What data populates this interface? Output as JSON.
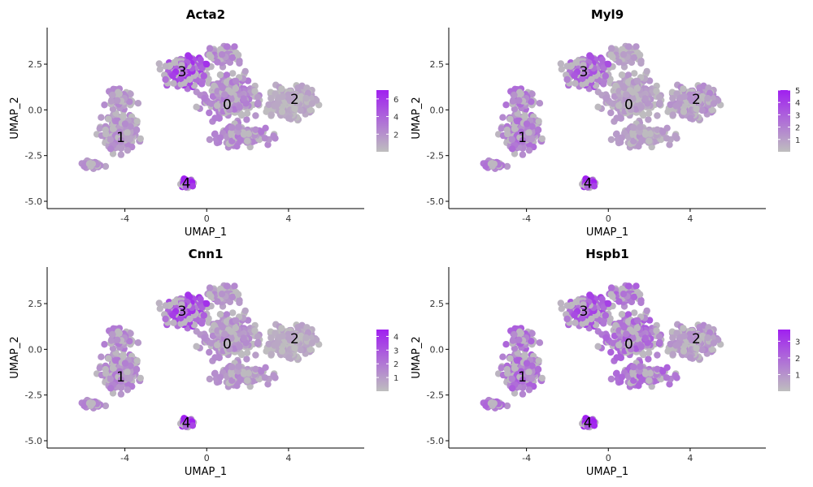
{
  "chart_data": [
    {
      "type": "scatter",
      "title": "Acta2",
      "xlabel": "UMAP_1",
      "ylabel": "UMAP_2",
      "xlim": [
        -7.8,
        7.7
      ],
      "ylim": [
        -5.4,
        4.5
      ],
      "x_ticks": [
        -4,
        0,
        4
      ],
      "x_tick_labels": [
        "-4",
        "0",
        "4"
      ],
      "y_ticks": [
        2.5,
        0.0,
        -2.5,
        -5.0
      ],
      "y_tick_labels": [
        "2.5",
        "0.0",
        "-2.5",
        "-5.0"
      ],
      "legend": {
        "position": "right",
        "min": 0,
        "max": 7,
        "ticks": [
          2,
          4,
          6
        ],
        "tick_labels": [
          "2",
          "4",
          "6"
        ]
      },
      "colors": {
        "low": "#bebebe",
        "high": "#a020f0"
      },
      "clusters": [
        {
          "label": "0",
          "x": 1.0,
          "y": 0.3
        },
        {
          "label": "1",
          "x": -4.2,
          "y": -1.5
        },
        {
          "label": "2",
          "x": 4.3,
          "y": 0.6
        },
        {
          "label": "3",
          "x": -1.2,
          "y": 2.1
        },
        {
          "label": "4",
          "x": -1.0,
          "y": -4.0
        }
      ],
      "expression_levels": {
        "0": 0.25,
        "1": 0.2,
        "2": 0.12,
        "3": 0.5,
        "4": 0.75
      }
    },
    {
      "type": "scatter",
      "title": "Myl9",
      "xlabel": "UMAP_1",
      "ylabel": "UMAP_2",
      "xlim": [
        -7.8,
        7.7
      ],
      "ylim": [
        -5.4,
        4.5
      ],
      "x_ticks": [
        -4,
        0,
        4
      ],
      "x_tick_labels": [
        "-4",
        "0",
        "4"
      ],
      "y_ticks": [
        2.5,
        0.0,
        -2.5,
        -5.0
      ],
      "y_tick_labels": [
        "2.5",
        "0.0",
        "-2.5",
        "-5.0"
      ],
      "legend": {
        "position": "right",
        "min": 0,
        "max": 5,
        "ticks": [
          1,
          2,
          3,
          4,
          5
        ],
        "tick_labels": [
          "1",
          "2",
          "3",
          "4",
          "5"
        ]
      },
      "colors": {
        "low": "#bebebe",
        "high": "#a020f0"
      },
      "clusters": [
        {
          "label": "0",
          "x": 1.0,
          "y": 0.3
        },
        {
          "label": "1",
          "x": -4.2,
          "y": -1.5
        },
        {
          "label": "2",
          "x": 4.3,
          "y": 0.6
        },
        {
          "label": "3",
          "x": -1.2,
          "y": 2.1
        },
        {
          "label": "4",
          "x": -1.0,
          "y": -4.0
        }
      ],
      "expression_levels": {
        "0": 0.15,
        "1": 0.3,
        "2": 0.2,
        "3": 0.4,
        "4": 0.7
      }
    },
    {
      "type": "scatter",
      "title": "Cnn1",
      "xlabel": "UMAP_1",
      "ylabel": "UMAP_2",
      "xlim": [
        -7.8,
        7.7
      ],
      "ylim": [
        -5.4,
        4.5
      ],
      "x_ticks": [
        -4,
        0,
        4
      ],
      "x_tick_labels": [
        "-4",
        "0",
        "4"
      ],
      "y_ticks": [
        2.5,
        0.0,
        -2.5,
        -5.0
      ],
      "y_tick_labels": [
        "2.5",
        "0.0",
        "-2.5",
        "-5.0"
      ],
      "legend": {
        "position": "right",
        "min": 0,
        "max": 4.5,
        "ticks": [
          1,
          2,
          3,
          4
        ],
        "tick_labels": [
          "1",
          "2",
          "3",
          "4"
        ]
      },
      "colors": {
        "low": "#bebebe",
        "high": "#a020f0"
      },
      "clusters": [
        {
          "label": "0",
          "x": 1.0,
          "y": 0.3
        },
        {
          "label": "1",
          "x": -4.2,
          "y": -1.5
        },
        {
          "label": "2",
          "x": 4.3,
          "y": 0.6
        },
        {
          "label": "3",
          "x": -1.2,
          "y": 2.1
        },
        {
          "label": "4",
          "x": -1.0,
          "y": -4.0
        }
      ],
      "expression_levels": {
        "0": 0.2,
        "1": 0.25,
        "2": 0.12,
        "3": 0.5,
        "4": 0.7
      }
    },
    {
      "type": "scatter",
      "title": "Hspb1",
      "xlabel": "UMAP_1",
      "ylabel": "UMAP_2",
      "xlim": [
        -7.8,
        7.7
      ],
      "ylim": [
        -5.4,
        4.5
      ],
      "x_ticks": [
        -4,
        0,
        4
      ],
      "x_tick_labels": [
        "-4",
        "0",
        "4"
      ],
      "y_ticks": [
        2.5,
        0.0,
        -2.5,
        -5.0
      ],
      "y_tick_labels": [
        "2.5",
        "0.0",
        "-2.5",
        "-5.0"
      ],
      "legend": {
        "position": "right",
        "min": 0,
        "max": 3.7,
        "ticks": [
          1,
          2,
          3
        ],
        "tick_labels": [
          "1",
          "2",
          "3"
        ]
      },
      "colors": {
        "low": "#bebebe",
        "high": "#a020f0"
      },
      "clusters": [
        {
          "label": "0",
          "x": 1.0,
          "y": 0.3
        },
        {
          "label": "1",
          "x": -4.2,
          "y": -1.5
        },
        {
          "label": "2",
          "x": 4.3,
          "y": 0.6
        },
        {
          "label": "3",
          "x": -1.2,
          "y": 2.1
        },
        {
          "label": "4",
          "x": -1.0,
          "y": -4.0
        }
      ],
      "expression_levels": {
        "0": 0.35,
        "1": 0.35,
        "2": 0.2,
        "3": 0.45,
        "4": 0.85
      }
    }
  ]
}
